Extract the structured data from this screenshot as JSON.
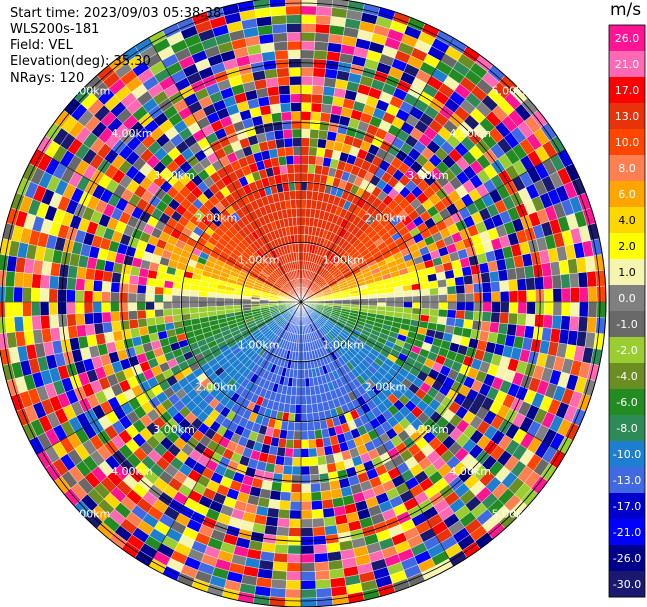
{
  "header": {
    "start_time": "Start time: 2023/09/03 05:38:38",
    "instrument": "WLS200s-181",
    "field": "Field: VEL",
    "elevation": "Elevation(deg): 35.30",
    "nrays": "NRays: 120"
  },
  "range_rings": {
    "labels": [
      "1.00km",
      "2.00km",
      "3.00km",
      "4.00km",
      "5.00km"
    ],
    "km": [
      1,
      2,
      3,
      4,
      5
    ],
    "max_range_km": 5.1
  },
  "colorbar": {
    "unit": "m/s",
    "ticks": [
      "26.0",
      "21.0",
      "17.0",
      "13.0",
      "10.0",
      "8.0",
      "6.0",
      "4.0",
      "2.0",
      "1.0",
      "0.0",
      "-1.0",
      "-2.0",
      "-4.0",
      "-6.0",
      "-8.0",
      "-10.0",
      "-13.0",
      "-17.0",
      "-21.0",
      "-26.0",
      "-30.0"
    ],
    "colors": [
      "#ff1493",
      "#ff69b4",
      "#ff0000",
      "#e8320a",
      "#ff4500",
      "#ff7f50",
      "#ffa500",
      "#ffd700",
      "#ffff00",
      "#f5f5b0",
      "#808080",
      "#696969",
      "#9acd32",
      "#6b8e23",
      "#228b22",
      "#2e8b57",
      "#1e7fd0",
      "#4169e1",
      "#0000cd",
      "#0000ff",
      "#00008b",
      "#191970"
    ]
  }
}
